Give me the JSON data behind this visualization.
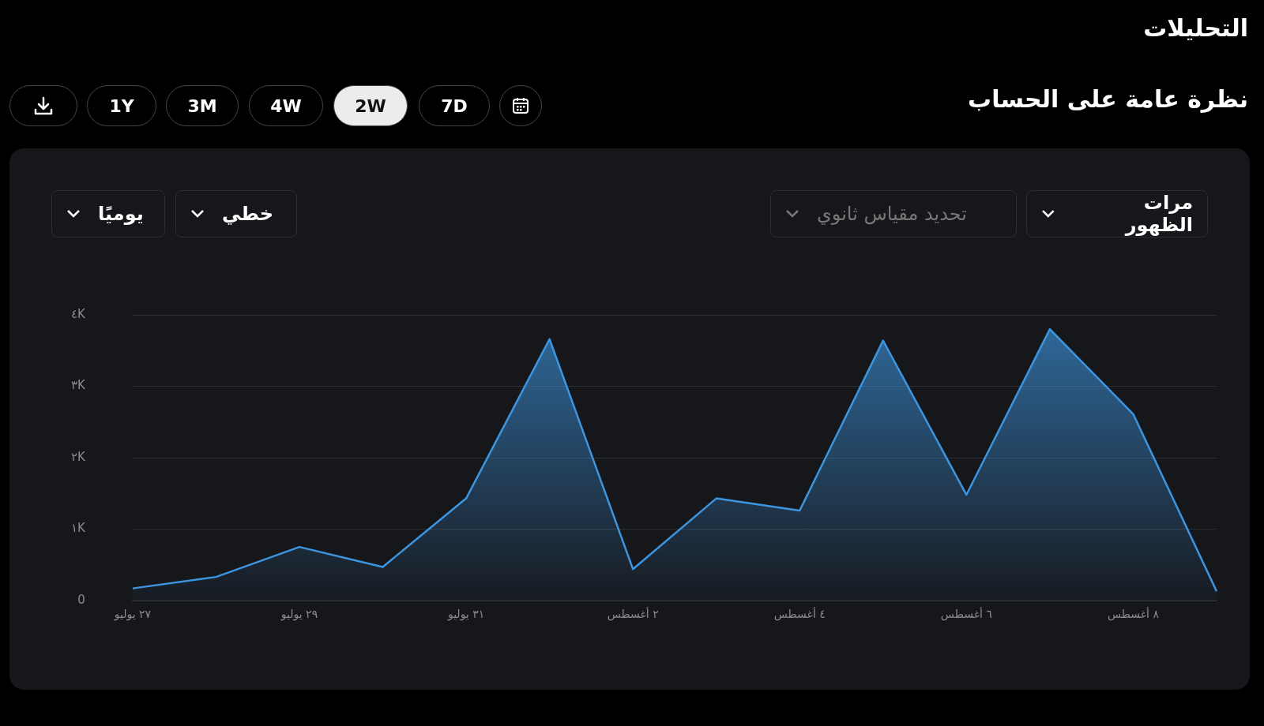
{
  "chart_data": {
    "type": "area",
    "title": "التحليلات",
    "subtitle": "نظرة عامة على الحساب",
    "annotations": [
      "1Y",
      "3M",
      "4W",
      "2W",
      "7D",
      "مرات الظهور",
      "تحديد مقياس ثانوي",
      "خطي",
      "يوميًا"
    ],
    "categories": [
      "٢٧ يوليو",
      null,
      "٢٩ يوليو",
      null,
      "٣١ يوليو",
      null,
      "٢ أغسطس",
      null,
      "٤ أغسطس",
      null,
      "٦ أغسطس",
      null,
      "٨ أغسطس",
      null
    ],
    "series": [
      {
        "color": "#3d95e0",
        "values": [
          170,
          330,
          750,
          470,
          1430,
          3660,
          440,
          1430,
          1260,
          3640,
          1480,
          3800,
          2610,
          130
        ]
      }
    ],
    "ylim": [
      0,
      4000
    ],
    "yticks": [
      {
        "value": 0,
        "label": "0"
      },
      {
        "value": 1000,
        "label": "١K"
      },
      {
        "value": 2000,
        "label": "٢K"
      },
      {
        "value": 3000,
        "label": "٣K"
      },
      {
        "value": 4000,
        "label": "٤K"
      }
    ],
    "grid": "y",
    "legend": false,
    "marker": "none",
    "line_style": "solid"
  }
}
